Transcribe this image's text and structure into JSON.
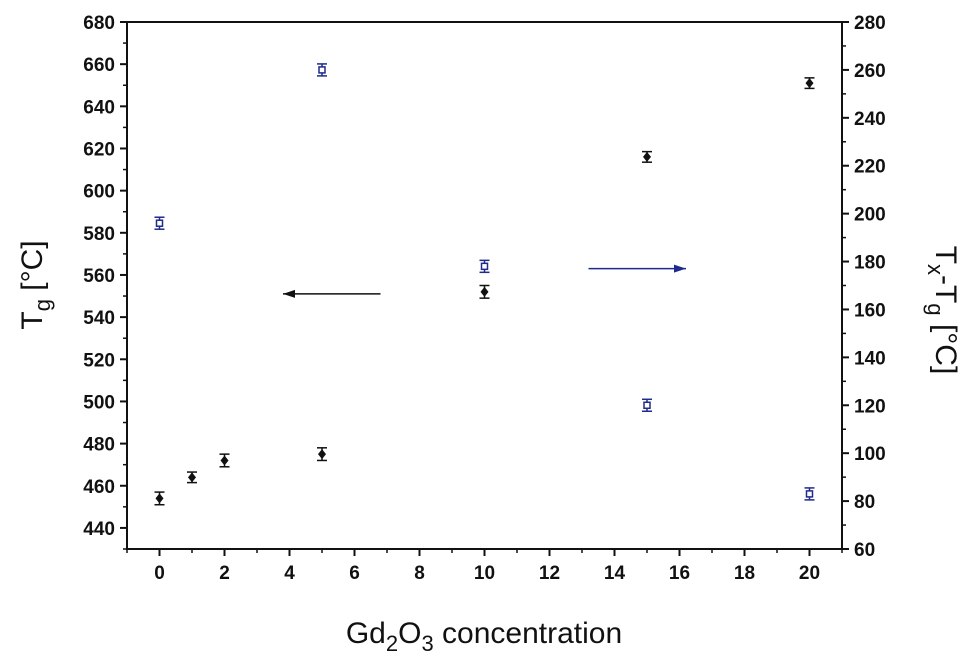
{
  "chart_data": {
    "type": "scatter",
    "x_axis": {
      "label_parts": [
        "Gd",
        "2",
        "O",
        "3",
        " concentration"
      ],
      "range": [
        -1,
        21
      ],
      "ticks": [
        0,
        2,
        4,
        6,
        8,
        10,
        12,
        14,
        16,
        18,
        20
      ]
    },
    "y_left_axis": {
      "label_parts": [
        "T",
        "g",
        " [°C]"
      ],
      "range": [
        430,
        680
      ],
      "ticks": [
        440,
        460,
        480,
        500,
        520,
        540,
        560,
        580,
        600,
        620,
        640,
        660,
        680
      ]
    },
    "y_right_axis": {
      "label_parts": [
        "T",
        "x",
        "-T",
        "g",
        " [°C]"
      ],
      "range": [
        60,
        280
      ],
      "ticks": [
        60,
        80,
        100,
        120,
        140,
        160,
        180,
        200,
        220,
        240,
        260,
        280
      ]
    },
    "series": [
      {
        "axis": "left",
        "marker": "diamond",
        "color": "#111111",
        "x": [
          0,
          1,
          2,
          5,
          10,
          15,
          20
        ],
        "y": [
          454,
          464,
          472,
          475,
          552,
          616,
          651
        ],
        "err": [
          3,
          2.5,
          3,
          3,
          3,
          2.5,
          2.5
        ]
      },
      {
        "axis": "right",
        "marker": "open-square",
        "color": "#1f2a8c",
        "x": [
          0,
          5,
          10,
          15,
          20
        ],
        "y": [
          196,
          260,
          178,
          120,
          83
        ],
        "err": [
          2.5,
          2.5,
          2.5,
          2.5,
          2.5
        ]
      }
    ],
    "annotations": [
      {
        "kind": "arrow",
        "axis": "left",
        "from": [
          6.8,
          551
        ],
        "to": [
          3.8,
          551
        ],
        "color": "#111111"
      },
      {
        "kind": "arrow",
        "axis": "left",
        "from": [
          13.2,
          563
        ],
        "to": [
          16.2,
          563
        ],
        "color": "#1f2a8c"
      }
    ],
    "grid": false,
    "legend": "none"
  }
}
